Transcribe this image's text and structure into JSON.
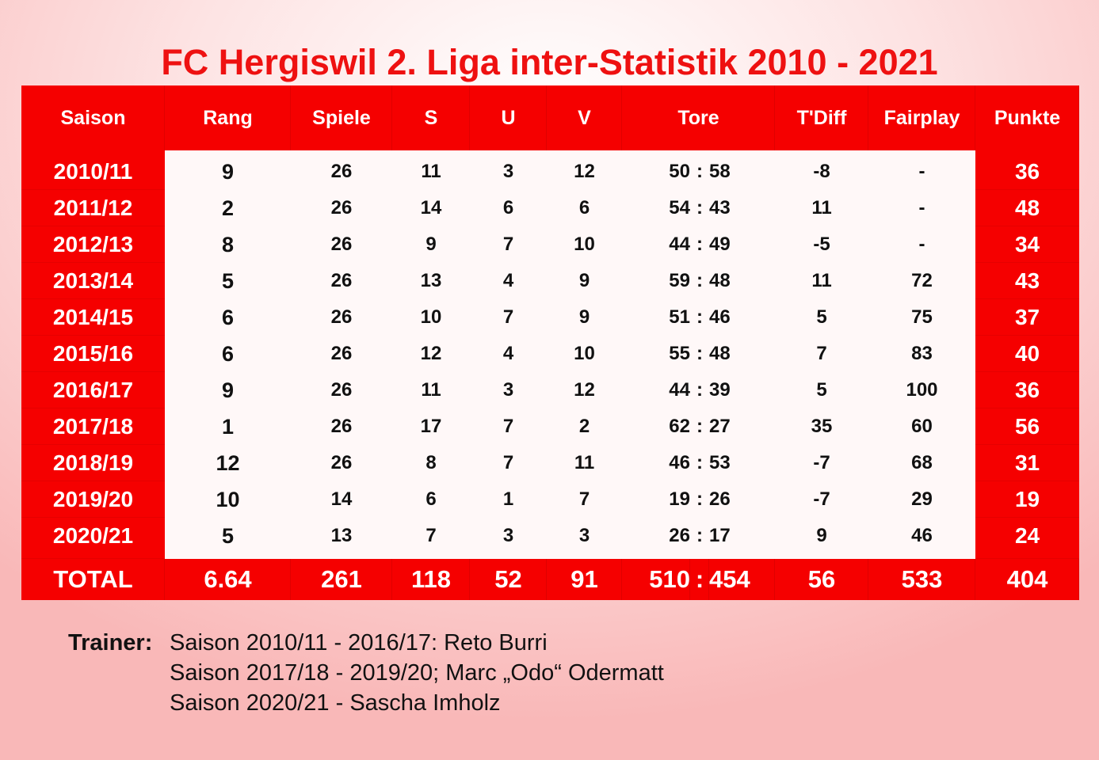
{
  "title": "FC Hergiswil 2. Liga inter-Statistik 2010 - 2021",
  "colors": {
    "red": "#f50000",
    "title_red": "#ee1111"
  },
  "table": {
    "headers": {
      "saison": "Saison",
      "rang": "Rang",
      "spiele": "Spiele",
      "s": "S",
      "u": "U",
      "v": "V",
      "tore": "Tore",
      "tdiff": "T'Diff",
      "fairplay": "Fairplay",
      "punkte": "Punkte"
    },
    "separator": ":",
    "rows": [
      {
        "saison": "2010/11",
        "rang": "9",
        "spiele": "26",
        "s": "11",
        "u": "3",
        "v": "12",
        "tore_for": "50",
        "tore_against": "58",
        "tdiff": "-8",
        "fairplay": "-",
        "punkte": "36"
      },
      {
        "saison": "2011/12",
        "rang": "2",
        "spiele": "26",
        "s": "14",
        "u": "6",
        "v": "6",
        "tore_for": "54",
        "tore_against": "43",
        "tdiff": "11",
        "fairplay": "-",
        "punkte": "48"
      },
      {
        "saison": "2012/13",
        "rang": "8",
        "spiele": "26",
        "s": "9",
        "u": "7",
        "v": "10",
        "tore_for": "44",
        "tore_against": "49",
        "tdiff": "-5",
        "fairplay": "-",
        "punkte": "34"
      },
      {
        "saison": "2013/14",
        "rang": "5",
        "spiele": "26",
        "s": "13",
        "u": "4",
        "v": "9",
        "tore_for": "59",
        "tore_against": "48",
        "tdiff": "11",
        "fairplay": "72",
        "punkte": "43"
      },
      {
        "saison": "2014/15",
        "rang": "6",
        "spiele": "26",
        "s": "10",
        "u": "7",
        "v": "9",
        "tore_for": "51",
        "tore_against": "46",
        "tdiff": "5",
        "fairplay": "75",
        "punkte": "37"
      },
      {
        "saison": "2015/16",
        "rang": "6",
        "spiele": "26",
        "s": "12",
        "u": "4",
        "v": "10",
        "tore_for": "55",
        "tore_against": "48",
        "tdiff": "7",
        "fairplay": "83",
        "punkte": "40"
      },
      {
        "saison": "2016/17",
        "rang": "9",
        "spiele": "26",
        "s": "11",
        "u": "3",
        "v": "12",
        "tore_for": "44",
        "tore_against": "39",
        "tdiff": "5",
        "fairplay": "100",
        "punkte": "36"
      },
      {
        "saison": "2017/18",
        "rang": "1",
        "spiele": "26",
        "s": "17",
        "u": "7",
        "v": "2",
        "tore_for": "62",
        "tore_against": "27",
        "tdiff": "35",
        "fairplay": "60",
        "punkte": "56"
      },
      {
        "saison": "2018/19",
        "rang": "12",
        "spiele": "26",
        "s": "8",
        "u": "7",
        "v": "11",
        "tore_for": "46",
        "tore_against": "53",
        "tdiff": "-7",
        "fairplay": "68",
        "punkte": "31"
      },
      {
        "saison": "2019/20",
        "rang": "10",
        "spiele": "14",
        "s": "6",
        "u": "1",
        "v": "7",
        "tore_for": "19",
        "tore_against": "26",
        "tdiff": "-7",
        "fairplay": "29",
        "punkte": "19"
      },
      {
        "saison": "2020/21",
        "rang": "5",
        "spiele": "13",
        "s": "7",
        "u": "3",
        "v": "3",
        "tore_for": "26",
        "tore_against": "17",
        "tdiff": "9",
        "fairplay": "46",
        "punkte": "24"
      }
    ],
    "total": {
      "saison": "TOTAL",
      "rang": "6.64",
      "spiele": "261",
      "s": "118",
      "u": "52",
      "v": "91",
      "tore_for": "510",
      "tore_against": "454",
      "tdiff": "56",
      "fairplay": "533",
      "punkte": "404"
    }
  },
  "trainer": {
    "label": "Trainer:",
    "lines": [
      "Saison 2010/11 - 2016/17: Reto Burri",
      "Saison 2017/18 - 2019/20; Marc „Odo“ Odermatt",
      "Saison 2020/21 - Sascha Imholz"
    ]
  }
}
